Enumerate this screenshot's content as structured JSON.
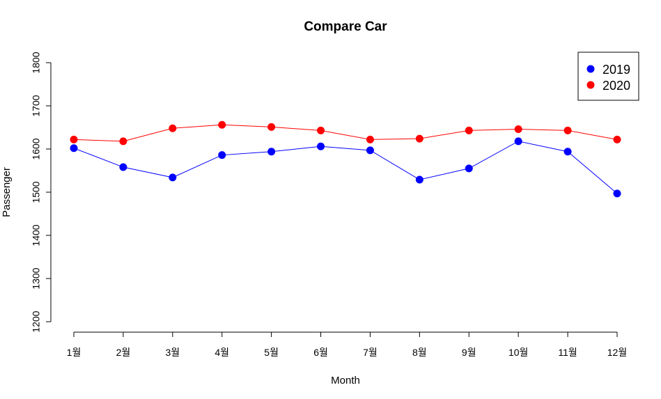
{
  "chart_data": {
    "type": "line",
    "title": "Compare Car",
    "xlabel": "Month",
    "ylabel": "Passenger",
    "categories": [
      "1월",
      "2월",
      "3월",
      "4월",
      "5월",
      "6월",
      "7월",
      "8월",
      "9월",
      "10월",
      "11월",
      "12월"
    ],
    "ylim": [
      1200,
      1800
    ],
    "yticks": [
      1200,
      1300,
      1400,
      1500,
      1600,
      1700,
      1800
    ],
    "grid": false,
    "legend_position": "top-right",
    "series": [
      {
        "name": "2019",
        "color": "#0000ff",
        "values": [
          1602,
          1558,
          1534,
          1586,
          1594,
          1606,
          1597,
          1529,
          1555,
          1618,
          1594,
          1497
        ]
      },
      {
        "name": "2020",
        "color": "#ff0000",
        "values": [
          1622,
          1618,
          1648,
          1656,
          1651,
          1643,
          1622,
          1624,
          1643,
          1646,
          1643,
          1622
        ]
      }
    ]
  }
}
